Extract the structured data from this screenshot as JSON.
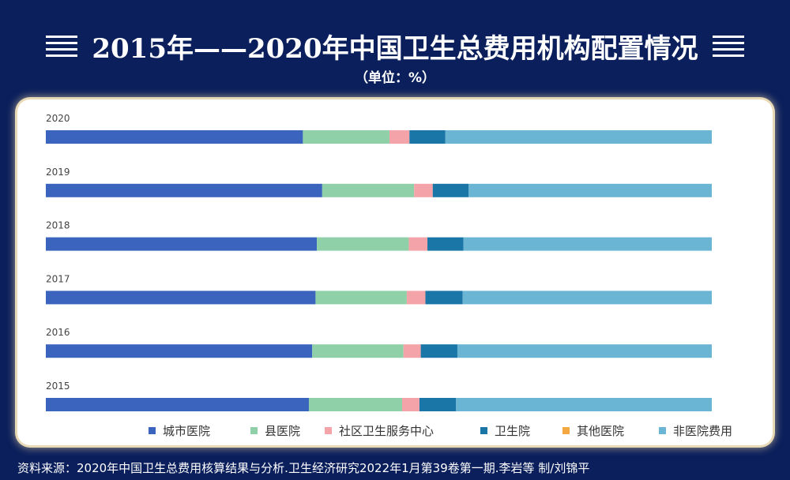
{
  "header": {
    "title": "2015年——2020年中国卫生总费用机构配置情况",
    "unit": "（单位：%）"
  },
  "source": "资料来源：2020年中国卫生总费用核算结果与分析.卫生经济研究2022年1月第39卷第一期.李岩等 制/刘锦平",
  "chart_data": {
    "type": "bar",
    "orientation": "horizontal",
    "stacked": true,
    "categories": [
      "2020",
      "2019",
      "2018",
      "2017",
      "2016",
      "2015"
    ],
    "series": [
      {
        "name": "城市医院",
        "color": "#3a64bd",
        "values": [
          38.6,
          41.5,
          40.7,
          40.5,
          40.0,
          39.5
        ]
      },
      {
        "name": "县医院",
        "color": "#8fd0a8",
        "values": [
          13.0,
          13.8,
          13.8,
          13.7,
          13.7,
          14.0
        ]
      },
      {
        "name": "社区卫生服务中心",
        "color": "#f4a3a8",
        "values": [
          3.0,
          2.8,
          2.8,
          2.8,
          2.6,
          2.6
        ]
      },
      {
        "name": "卫生院",
        "color": "#1b76a8",
        "values": [
          5.4,
          5.4,
          5.4,
          5.6,
          5.5,
          5.5
        ]
      },
      {
        "name": "其他医院",
        "color": "#f5a742",
        "values": [
          0.0,
          0.0,
          0.0,
          0.0,
          0.0,
          0.0
        ]
      },
      {
        "name": "非医院费用",
        "color": "#6ab4d4",
        "values": [
          40.0,
          36.5,
          37.3,
          37.4,
          38.2,
          38.4
        ]
      }
    ],
    "xlim": [
      0,
      100
    ],
    "grid": false,
    "legend": "bottom-right"
  }
}
